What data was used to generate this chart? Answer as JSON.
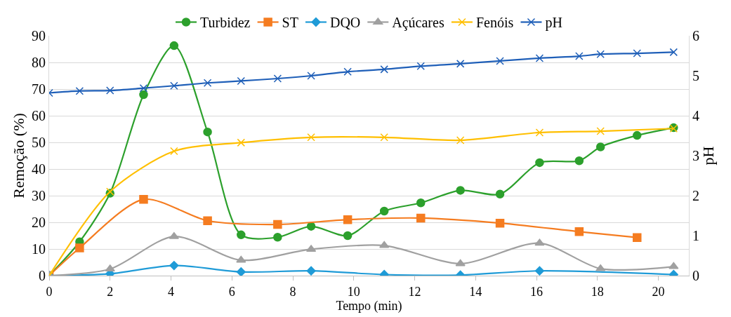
{
  "chart_data": {
    "type": "line",
    "xlabel": "Tempo (min)",
    "ylabel": "Remoção (%)",
    "y2label": "pH",
    "xlim": [
      0,
      21
    ],
    "xticks": [
      0,
      2,
      4,
      6,
      8,
      10,
      12,
      14,
      16,
      18,
      20
    ],
    "ylim": [
      0,
      90
    ],
    "yticks": [
      0,
      10,
      20,
      30,
      40,
      50,
      60,
      70,
      80,
      90
    ],
    "y2lim": [
      0,
      6
    ],
    "y2ticks": [
      0,
      1,
      2,
      3,
      4,
      5,
      6
    ],
    "grid": "y",
    "legend": "top",
    "line_style": "solid",
    "series": [
      {
        "name": "Turbidez",
        "color": "#2ca02c",
        "marker": "circle",
        "x": [
          0,
          1,
          2,
          3.1,
          4.1,
          5.2,
          6.3,
          7.5,
          8.6,
          9.8,
          11,
          12.2,
          13.5,
          14.8,
          16.1,
          17.4,
          18.1,
          19.3,
          20.5
        ],
        "values": [
          0,
          12.7,
          30.9,
          67.9,
          86.3,
          53.9,
          15.3,
          14.4,
          18.5,
          15.0,
          24.2,
          27.3,
          32.0,
          30.6,
          42.4,
          43.1,
          48.3,
          52.6,
          55.5
        ]
      },
      {
        "name": "ST",
        "color": "#f57c20",
        "marker": "square",
        "x": [
          0,
          1,
          3.1,
          5.2,
          7.5,
          9.8,
          12.2,
          14.8,
          17.4,
          19.3
        ],
        "values": [
          0,
          10.4,
          28.6,
          20.6,
          19.2,
          21.0,
          21.6,
          19.7,
          16.5,
          14.3
        ]
      },
      {
        "name": "DQO",
        "color": "#1f9bd7",
        "marker": "diamond",
        "x": [
          0,
          2,
          4.1,
          6.3,
          8.6,
          11,
          13.5,
          16.1,
          18.1,
          20.5
        ],
        "values": [
          0,
          0.7,
          3.8,
          1.4,
          1.8,
          0.4,
          0.2,
          1.8,
          null,
          0.4
        ]
      },
      {
        "name": "Açúcares",
        "color": "#a0a0a0",
        "marker": "triangle",
        "x": [
          0,
          2,
          4.1,
          6.3,
          8.6,
          11,
          13.5,
          16.1,
          18.1,
          20.5
        ],
        "values": [
          0,
          2.5,
          14.7,
          5.8,
          9.9,
          11.3,
          4.5,
          12.2,
          2.6,
          3.4
        ]
      },
      {
        "name": "Fenóis",
        "color": "#ffbf00",
        "marker": "cross",
        "x": [
          0,
          2,
          4.1,
          6.3,
          8.6,
          11,
          13.5,
          16.1,
          18.1,
          20.5
        ],
        "values": [
          0,
          31.5,
          46.7,
          49.9,
          51.9,
          51.9,
          50.8,
          53.7,
          54.2,
          55.2
        ]
      },
      {
        "name": "pH",
        "color": "#1f5fb8",
        "marker": "cross",
        "axis": "y2",
        "x": [
          0,
          1,
          2,
          3.1,
          4.1,
          5.2,
          6.3,
          7.5,
          8.6,
          9.8,
          11,
          12.2,
          13.5,
          14.8,
          16.1,
          17.4,
          18.1,
          19.3,
          20.5
        ],
        "values": [
          4.57,
          4.62,
          4.63,
          4.69,
          4.75,
          4.82,
          4.87,
          4.93,
          5.0,
          5.1,
          5.16,
          5.24,
          5.3,
          5.37,
          5.44,
          5.49,
          5.54,
          5.56,
          5.59
        ]
      }
    ]
  }
}
